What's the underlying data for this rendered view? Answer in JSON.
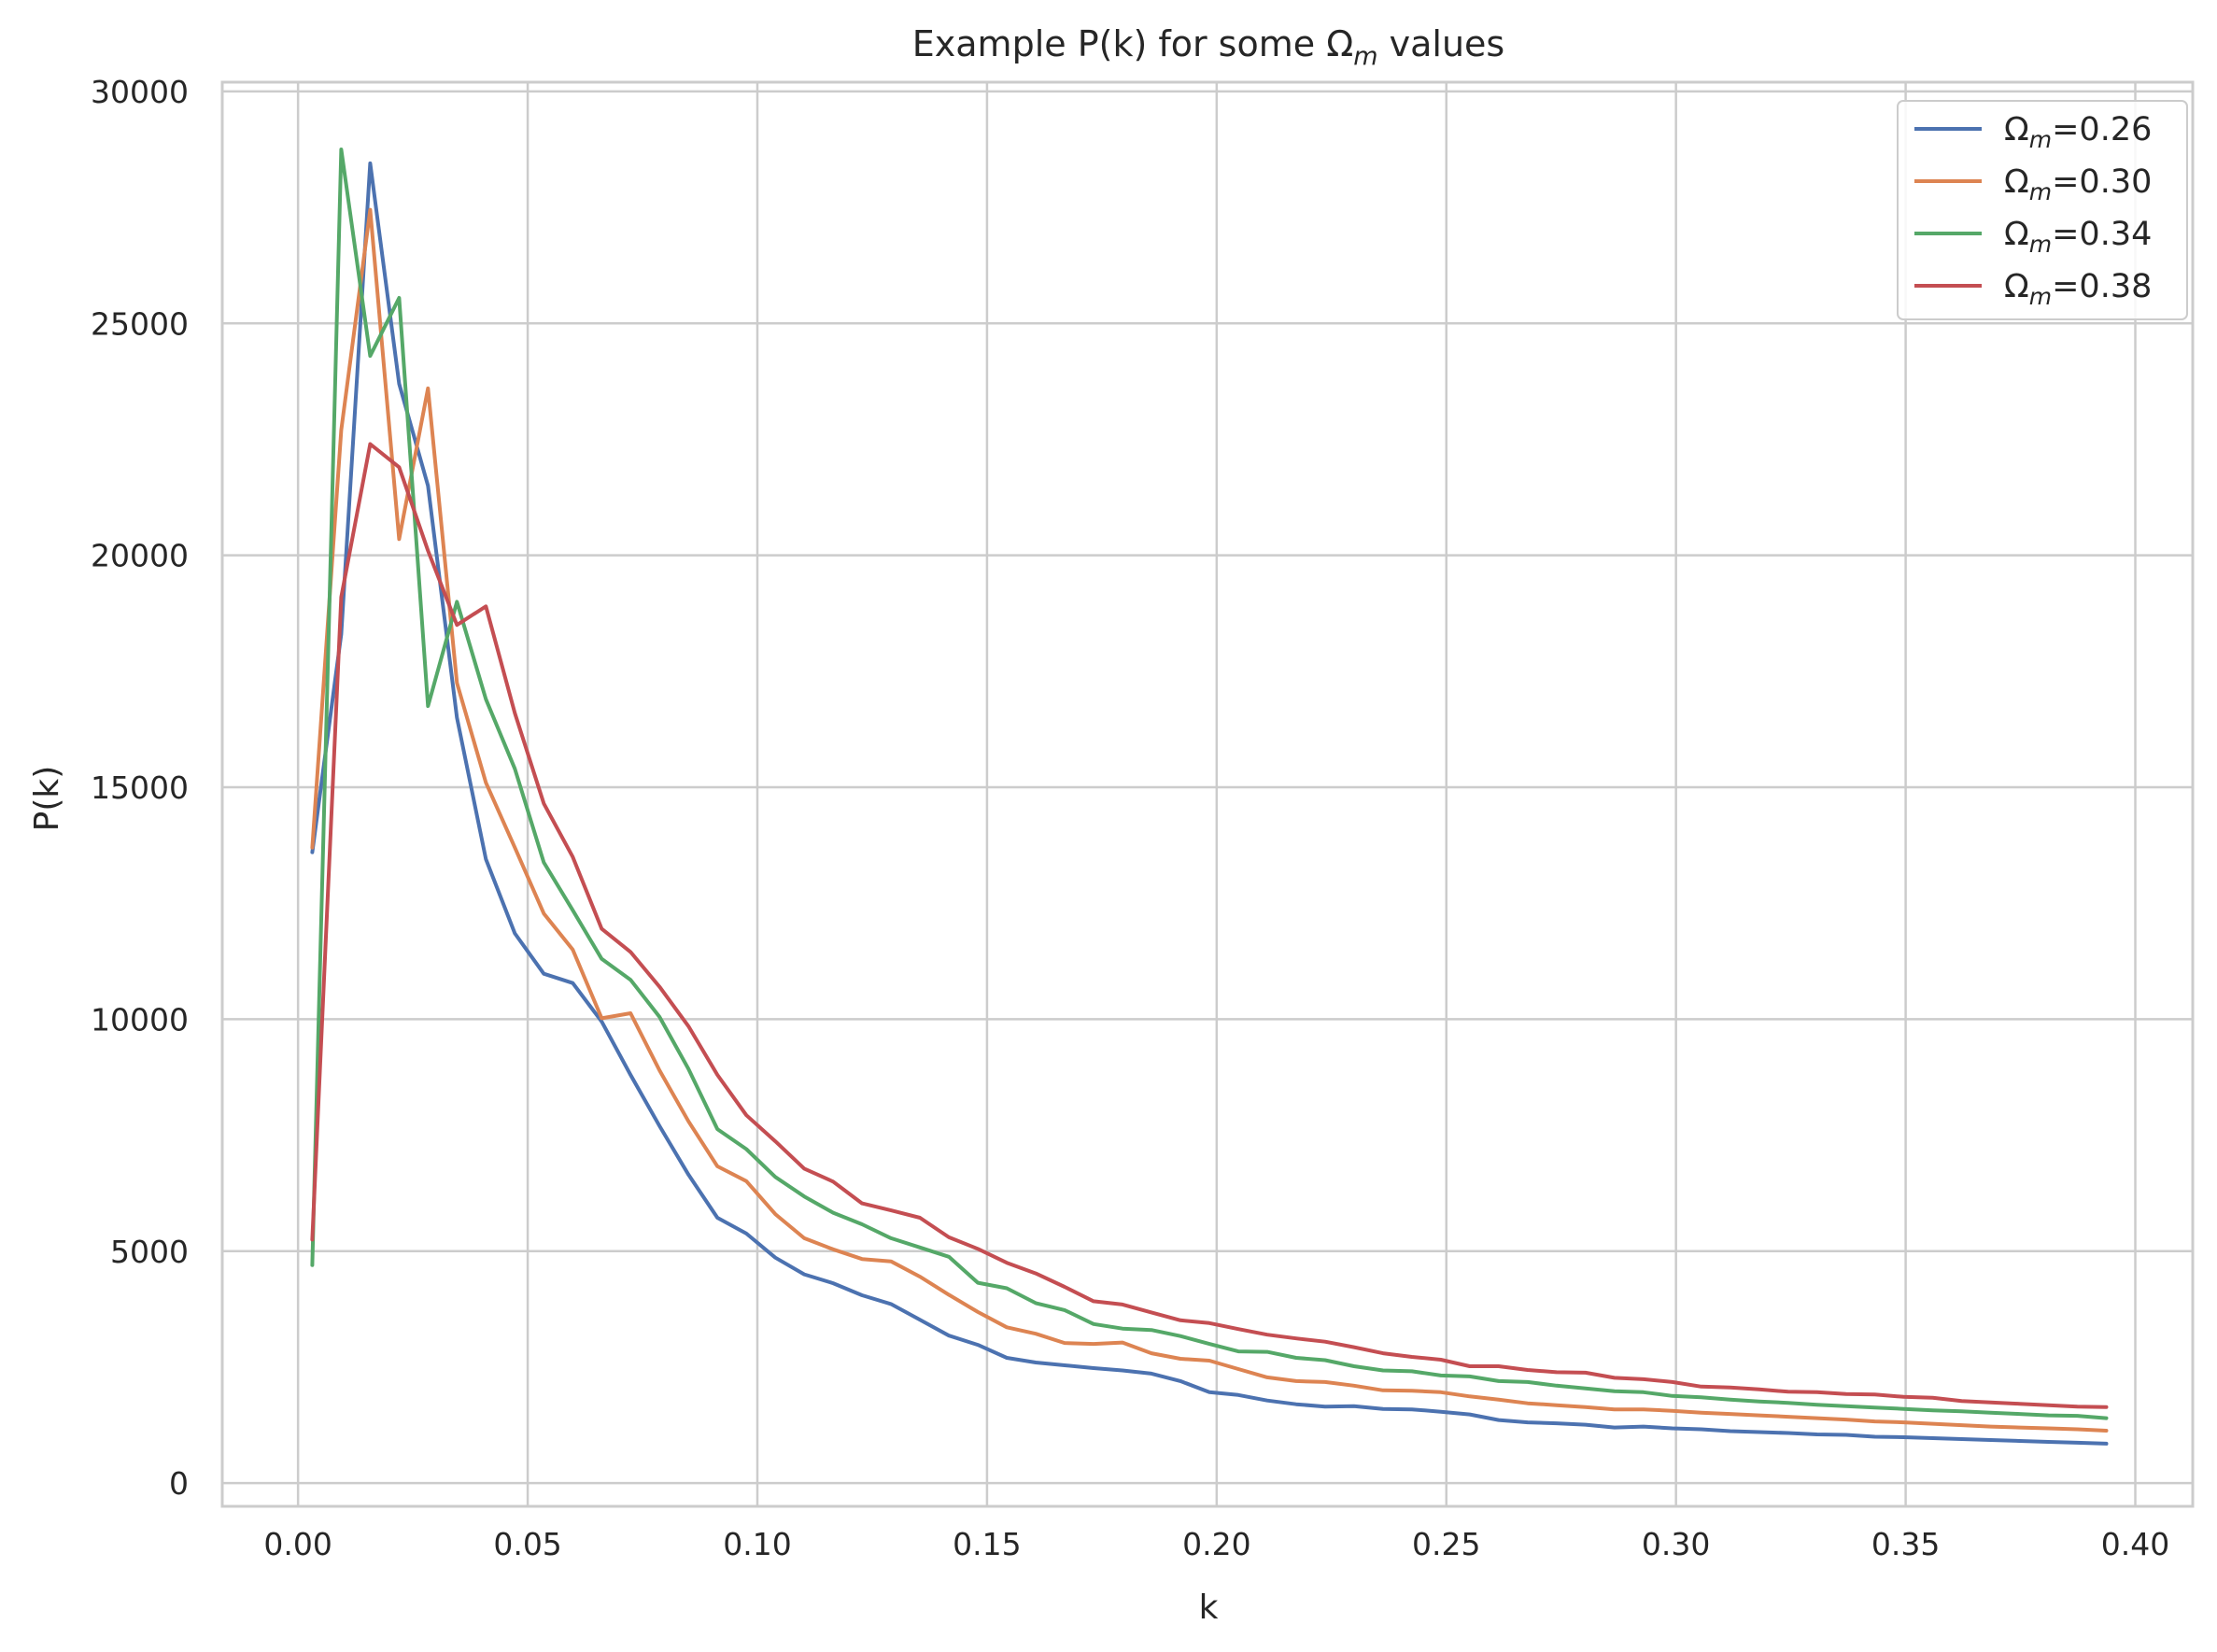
{
  "chart_data": {
    "type": "line",
    "title_prefix": "Example P(k) for some Ω",
    "title_sub": "m",
    "title_suffix": " values",
    "xlabel": "k",
    "ylabel": "P(k)",
    "xlim": [
      -0.0165,
      0.4125
    ],
    "ylim": [
      -500,
      30200
    ],
    "x_ticks": [
      0.0,
      0.05,
      0.1,
      0.15,
      0.2,
      0.25,
      0.3,
      0.35,
      0.4
    ],
    "x_tick_labels": [
      "0.00",
      "0.05",
      "0.10",
      "0.15",
      "0.20",
      "0.25",
      "0.30",
      "0.35",
      "0.40"
    ],
    "y_ticks": [
      0,
      5000,
      10000,
      15000,
      20000,
      25000,
      30000
    ],
    "y_tick_labels": [
      "0",
      "5000",
      "10000",
      "15000",
      "20000",
      "25000",
      "30000"
    ],
    "grid": true,
    "legend_position": "top-right",
    "x": [
      0.0031,
      0.0094,
      0.0157,
      0.022,
      0.0283,
      0.0346,
      0.0409,
      0.0472,
      0.0535,
      0.0598,
      0.0661,
      0.0724,
      0.0787,
      0.085,
      0.0913,
      0.0976,
      0.1039,
      0.1102,
      0.1165,
      0.1228,
      0.1291,
      0.1354,
      0.1417,
      0.148,
      0.1543,
      0.1606,
      0.1669,
      0.1732,
      0.1795,
      0.1858,
      0.1921,
      0.1984,
      0.2047,
      0.211,
      0.2173,
      0.2236,
      0.2299,
      0.2362,
      0.2425,
      0.2488,
      0.2551,
      0.2614,
      0.2677,
      0.274,
      0.2803,
      0.2866,
      0.2929,
      0.2992,
      0.3055,
      0.3118,
      0.3181,
      0.3244,
      0.3307,
      0.337,
      0.3433,
      0.3496,
      0.3559,
      0.3622,
      0.3685,
      0.3748,
      0.3811,
      0.3874,
      0.3937
    ],
    "series": [
      {
        "name_prefix": "Ω",
        "name_sub": "m",
        "name_suffix": "=0.26",
        "color": "#4c72b0",
        "values": [
          13600,
          18300,
          28450,
          23700,
          21500,
          16500,
          13450,
          11850,
          10980,
          10780,
          9950,
          8800,
          7700,
          6650,
          5720,
          5380,
          4860,
          4500,
          4310,
          4050,
          3860,
          3520,
          3180,
          2980,
          2700,
          2600,
          2540,
          2480,
          2430,
          2360,
          2200,
          1960,
          1900,
          1780,
          1700,
          1650,
          1660,
          1600,
          1590,
          1540,
          1480,
          1360,
          1310,
          1290,
          1260,
          1200,
          1220,
          1180,
          1160,
          1120,
          1100,
          1080,
          1050,
          1040,
          1000,
          990,
          970,
          950,
          930,
          910,
          890,
          870,
          850
        ]
      },
      {
        "name_prefix": "Ω",
        "name_sub": "m",
        "name_suffix": "=0.30",
        "color": "#dd8452",
        "values": [
          13700,
          22700,
          27450,
          20350,
          23600,
          17250,
          15100,
          13700,
          12280,
          11500,
          10020,
          10130,
          8900,
          7800,
          6830,
          6510,
          5800,
          5280,
          5040,
          4830,
          4780,
          4450,
          4060,
          3690,
          3360,
          3220,
          3020,
          3000,
          3030,
          2800,
          2680,
          2640,
          2460,
          2280,
          2200,
          2180,
          2100,
          2000,
          1990,
          1960,
          1870,
          1800,
          1720,
          1680,
          1640,
          1590,
          1590,
          1560,
          1520,
          1490,
          1460,
          1430,
          1400,
          1370,
          1330,
          1310,
          1280,
          1250,
          1220,
          1200,
          1180,
          1160,
          1130
        ]
      },
      {
        "name_prefix": "Ω",
        "name_sub": "m",
        "name_suffix": "=0.34",
        "color": "#55a868",
        "values": [
          4700,
          28750,
          24300,
          25550,
          16750,
          19000,
          16900,
          15400,
          13380,
          12350,
          11300,
          10850,
          10050,
          8930,
          7630,
          7200,
          6600,
          6180,
          5830,
          5580,
          5280,
          5080,
          4880,
          4320,
          4200,
          3880,
          3730,
          3430,
          3330,
          3300,
          3170,
          3000,
          2840,
          2830,
          2700,
          2650,
          2520,
          2430,
          2410,
          2320,
          2300,
          2200,
          2180,
          2100,
          2040,
          1980,
          1960,
          1880,
          1850,
          1800,
          1760,
          1730,
          1690,
          1660,
          1630,
          1600,
          1570,
          1550,
          1520,
          1490,
          1460,
          1450,
          1400
        ]
      },
      {
        "name_prefix": "Ω",
        "name_sub": "m",
        "name_suffix": "=0.38",
        "color": "#c44e52",
        "values": [
          5250,
          19100,
          22400,
          21900,
          20100,
          18500,
          18900,
          16600,
          14650,
          13500,
          11950,
          11450,
          10700,
          9850,
          8800,
          7930,
          7370,
          6780,
          6500,
          6030,
          5880,
          5720,
          5300,
          5050,
          4750,
          4520,
          4230,
          3920,
          3850,
          3680,
          3510,
          3450,
          3320,
          3200,
          3120,
          3050,
          2930,
          2800,
          2720,
          2660,
          2520,
          2520,
          2440,
          2390,
          2380,
          2270,
          2240,
          2180,
          2080,
          2060,
          2020,
          1970,
          1960,
          1920,
          1910,
          1860,
          1840,
          1770,
          1740,
          1710,
          1680,
          1650,
          1640
        ]
      }
    ]
  }
}
